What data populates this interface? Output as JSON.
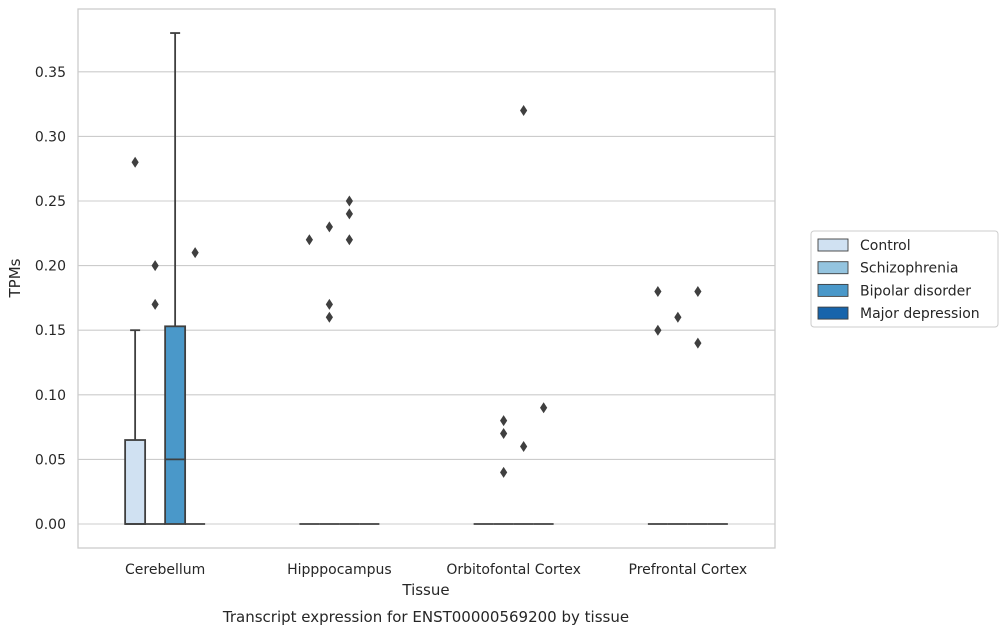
{
  "chart_data": {
    "type": "box",
    "title": "",
    "caption": "Transcript expression for ENST00000569200 by tissue",
    "xlabel": "Tissue",
    "ylabel": "TPMs",
    "categories": [
      "Cerebellum",
      "Hipppocampus",
      "Orbitofontal Cortex",
      "Prefrontal Cortex"
    ],
    "ylim": [
      -0.018,
      0.395
    ],
    "yticks": [
      0.0,
      0.05,
      0.1,
      0.15,
      0.2,
      0.25,
      0.3,
      0.35
    ],
    "ytick_labels": [
      "0.00",
      "0.05",
      "0.10",
      "0.15",
      "0.20",
      "0.25",
      "0.30",
      "0.35"
    ],
    "grid": "horizontal",
    "legend_position": "right",
    "series": [
      {
        "name": "Control",
        "color": "#d0e1f2",
        "boxes": [
          {
            "category": "Cerebellum",
            "q1": 0.0,
            "median": 0.0,
            "q3": 0.065,
            "whisker_low": 0.0,
            "whisker_high": 0.15,
            "outliers": [
              0.28
            ]
          },
          {
            "category": "Hipppocampus",
            "q1": 0.0,
            "median": 0.0,
            "q3": 0.0,
            "whisker_low": 0.0,
            "whisker_high": 0.0,
            "outliers": [
              0.22
            ]
          },
          {
            "category": "Orbitofontal Cortex",
            "q1": 0.0,
            "median": 0.0,
            "q3": 0.0,
            "whisker_low": 0.0,
            "whisker_high": 0.0,
            "outliers": []
          },
          {
            "category": "Prefrontal Cortex",
            "q1": 0.0,
            "median": 0.0,
            "q3": 0.0,
            "whisker_low": 0.0,
            "whisker_high": 0.0,
            "outliers": [
              0.18,
              0.15
            ]
          }
        ]
      },
      {
        "name": "Schizophrenia",
        "color": "#94c4df",
        "boxes": [
          {
            "category": "Cerebellum",
            "q1": 0.0,
            "median": 0.0,
            "q3": 0.0,
            "whisker_low": 0.0,
            "whisker_high": 0.0,
            "outliers": [
              0.2,
              0.17
            ]
          },
          {
            "category": "Hipppocampus",
            "q1": 0.0,
            "median": 0.0,
            "q3": 0.0,
            "whisker_low": 0.0,
            "whisker_high": 0.0,
            "outliers": [
              0.23,
              0.17,
              0.16
            ]
          },
          {
            "category": "Orbitofontal Cortex",
            "q1": 0.0,
            "median": 0.0,
            "q3": 0.0,
            "whisker_low": 0.0,
            "whisker_high": 0.0,
            "outliers": [
              0.08,
              0.07,
              0.04
            ]
          },
          {
            "category": "Prefrontal Cortex",
            "q1": 0.0,
            "median": 0.0,
            "q3": 0.0,
            "whisker_low": 0.0,
            "whisker_high": 0.0,
            "outliers": [
              0.16
            ]
          }
        ]
      },
      {
        "name": "Bipolar disorder",
        "color": "#4a98c9",
        "boxes": [
          {
            "category": "Cerebellum",
            "q1": 0.0,
            "median": 0.05,
            "q3": 0.153,
            "whisker_low": 0.0,
            "whisker_high": 0.38,
            "outliers": []
          },
          {
            "category": "Hipppocampus",
            "q1": 0.0,
            "median": 0.0,
            "q3": 0.0,
            "whisker_low": 0.0,
            "whisker_high": 0.0,
            "outliers": [
              0.25,
              0.24,
              0.22
            ]
          },
          {
            "category": "Orbitofontal Cortex",
            "q1": 0.0,
            "median": 0.0,
            "q3": 0.0,
            "whisker_low": 0.0,
            "whisker_high": 0.0,
            "outliers": [
              0.32,
              0.06
            ]
          },
          {
            "category": "Prefrontal Cortex",
            "q1": 0.0,
            "median": 0.0,
            "q3": 0.0,
            "whisker_low": 0.0,
            "whisker_high": 0.0,
            "outliers": [
              0.18,
              0.14
            ]
          }
        ]
      },
      {
        "name": "Major depression",
        "color": "#1764ab",
        "boxes": [
          {
            "category": "Cerebellum",
            "q1": 0.0,
            "median": 0.0,
            "q3": 0.0,
            "whisker_low": 0.0,
            "whisker_high": 0.0,
            "outliers": [
              0.21
            ]
          },
          {
            "category": "Hipppocampus",
            "q1": 0.0,
            "median": 0.0,
            "q3": 0.0,
            "whisker_low": 0.0,
            "whisker_high": 0.0,
            "outliers": []
          },
          {
            "category": "Orbitofontal Cortex",
            "q1": 0.0,
            "median": 0.0,
            "q3": 0.0,
            "whisker_low": 0.0,
            "whisker_high": 0.0,
            "outliers": [
              0.09
            ]
          },
          {
            "category": "Prefrontal Cortex",
            "q1": 0.0,
            "median": 0.0,
            "q3": 0.0,
            "whisker_low": 0.0,
            "whisker_high": 0.0,
            "outliers": []
          }
        ]
      }
    ]
  }
}
